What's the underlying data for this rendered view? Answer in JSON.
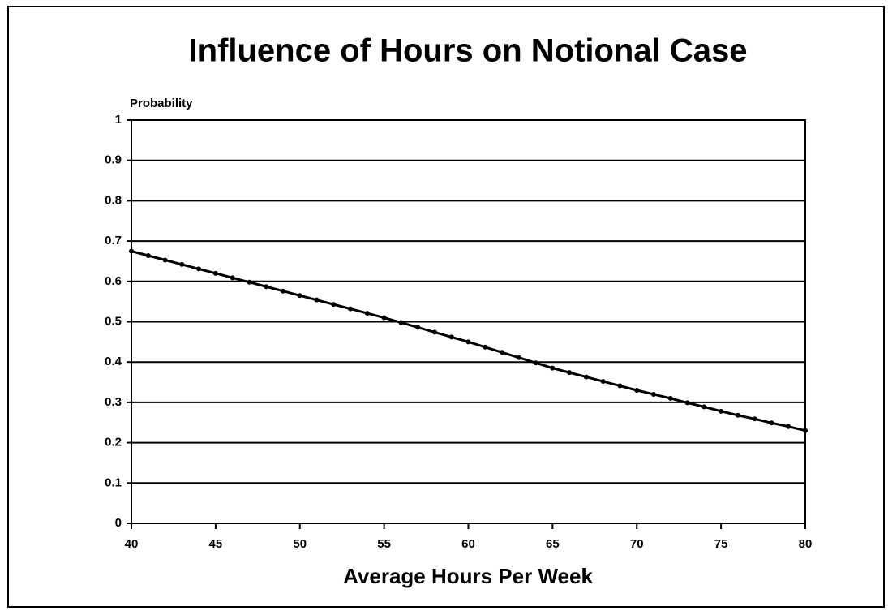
{
  "chart_data": {
    "type": "line",
    "title": "Influence of Hours on Notional Case",
    "y_label": "Probability",
    "x_label": "Average Hours Per Week",
    "x": [
      40,
      41,
      42,
      43,
      44,
      45,
      46,
      47,
      48,
      49,
      50,
      51,
      52,
      53,
      54,
      55,
      56,
      57,
      58,
      59,
      60,
      61,
      62,
      63,
      64,
      65,
      66,
      67,
      68,
      69,
      70,
      71,
      72,
      73,
      74,
      75,
      76,
      77,
      78,
      79,
      80
    ],
    "series": [
      {
        "color": "#000000",
        "values": [
          0.675,
          0.664,
          0.653,
          0.642,
          0.631,
          0.62,
          0.609,
          0.598,
          0.587,
          0.576,
          0.565,
          0.554,
          0.543,
          0.532,
          0.521,
          0.51,
          0.498,
          0.486,
          0.474,
          0.462,
          0.45,
          0.437,
          0.424,
          0.411,
          0.398,
          0.385,
          0.374,
          0.363,
          0.352,
          0.341,
          0.33,
          0.32,
          0.31,
          0.299,
          0.289,
          0.278,
          0.268,
          0.259,
          0.249,
          0.24,
          0.23
        ]
      }
    ],
    "xlim": [
      40,
      80
    ],
    "xticks": [
      40,
      45,
      50,
      55,
      60,
      65,
      70,
      75,
      80
    ],
    "ylim": [
      0,
      1
    ],
    "yticks": [
      0,
      0.1,
      0.2,
      0.3,
      0.4,
      0.5,
      0.6,
      0.7,
      0.8,
      0.9,
      1
    ],
    "grid": true
  }
}
